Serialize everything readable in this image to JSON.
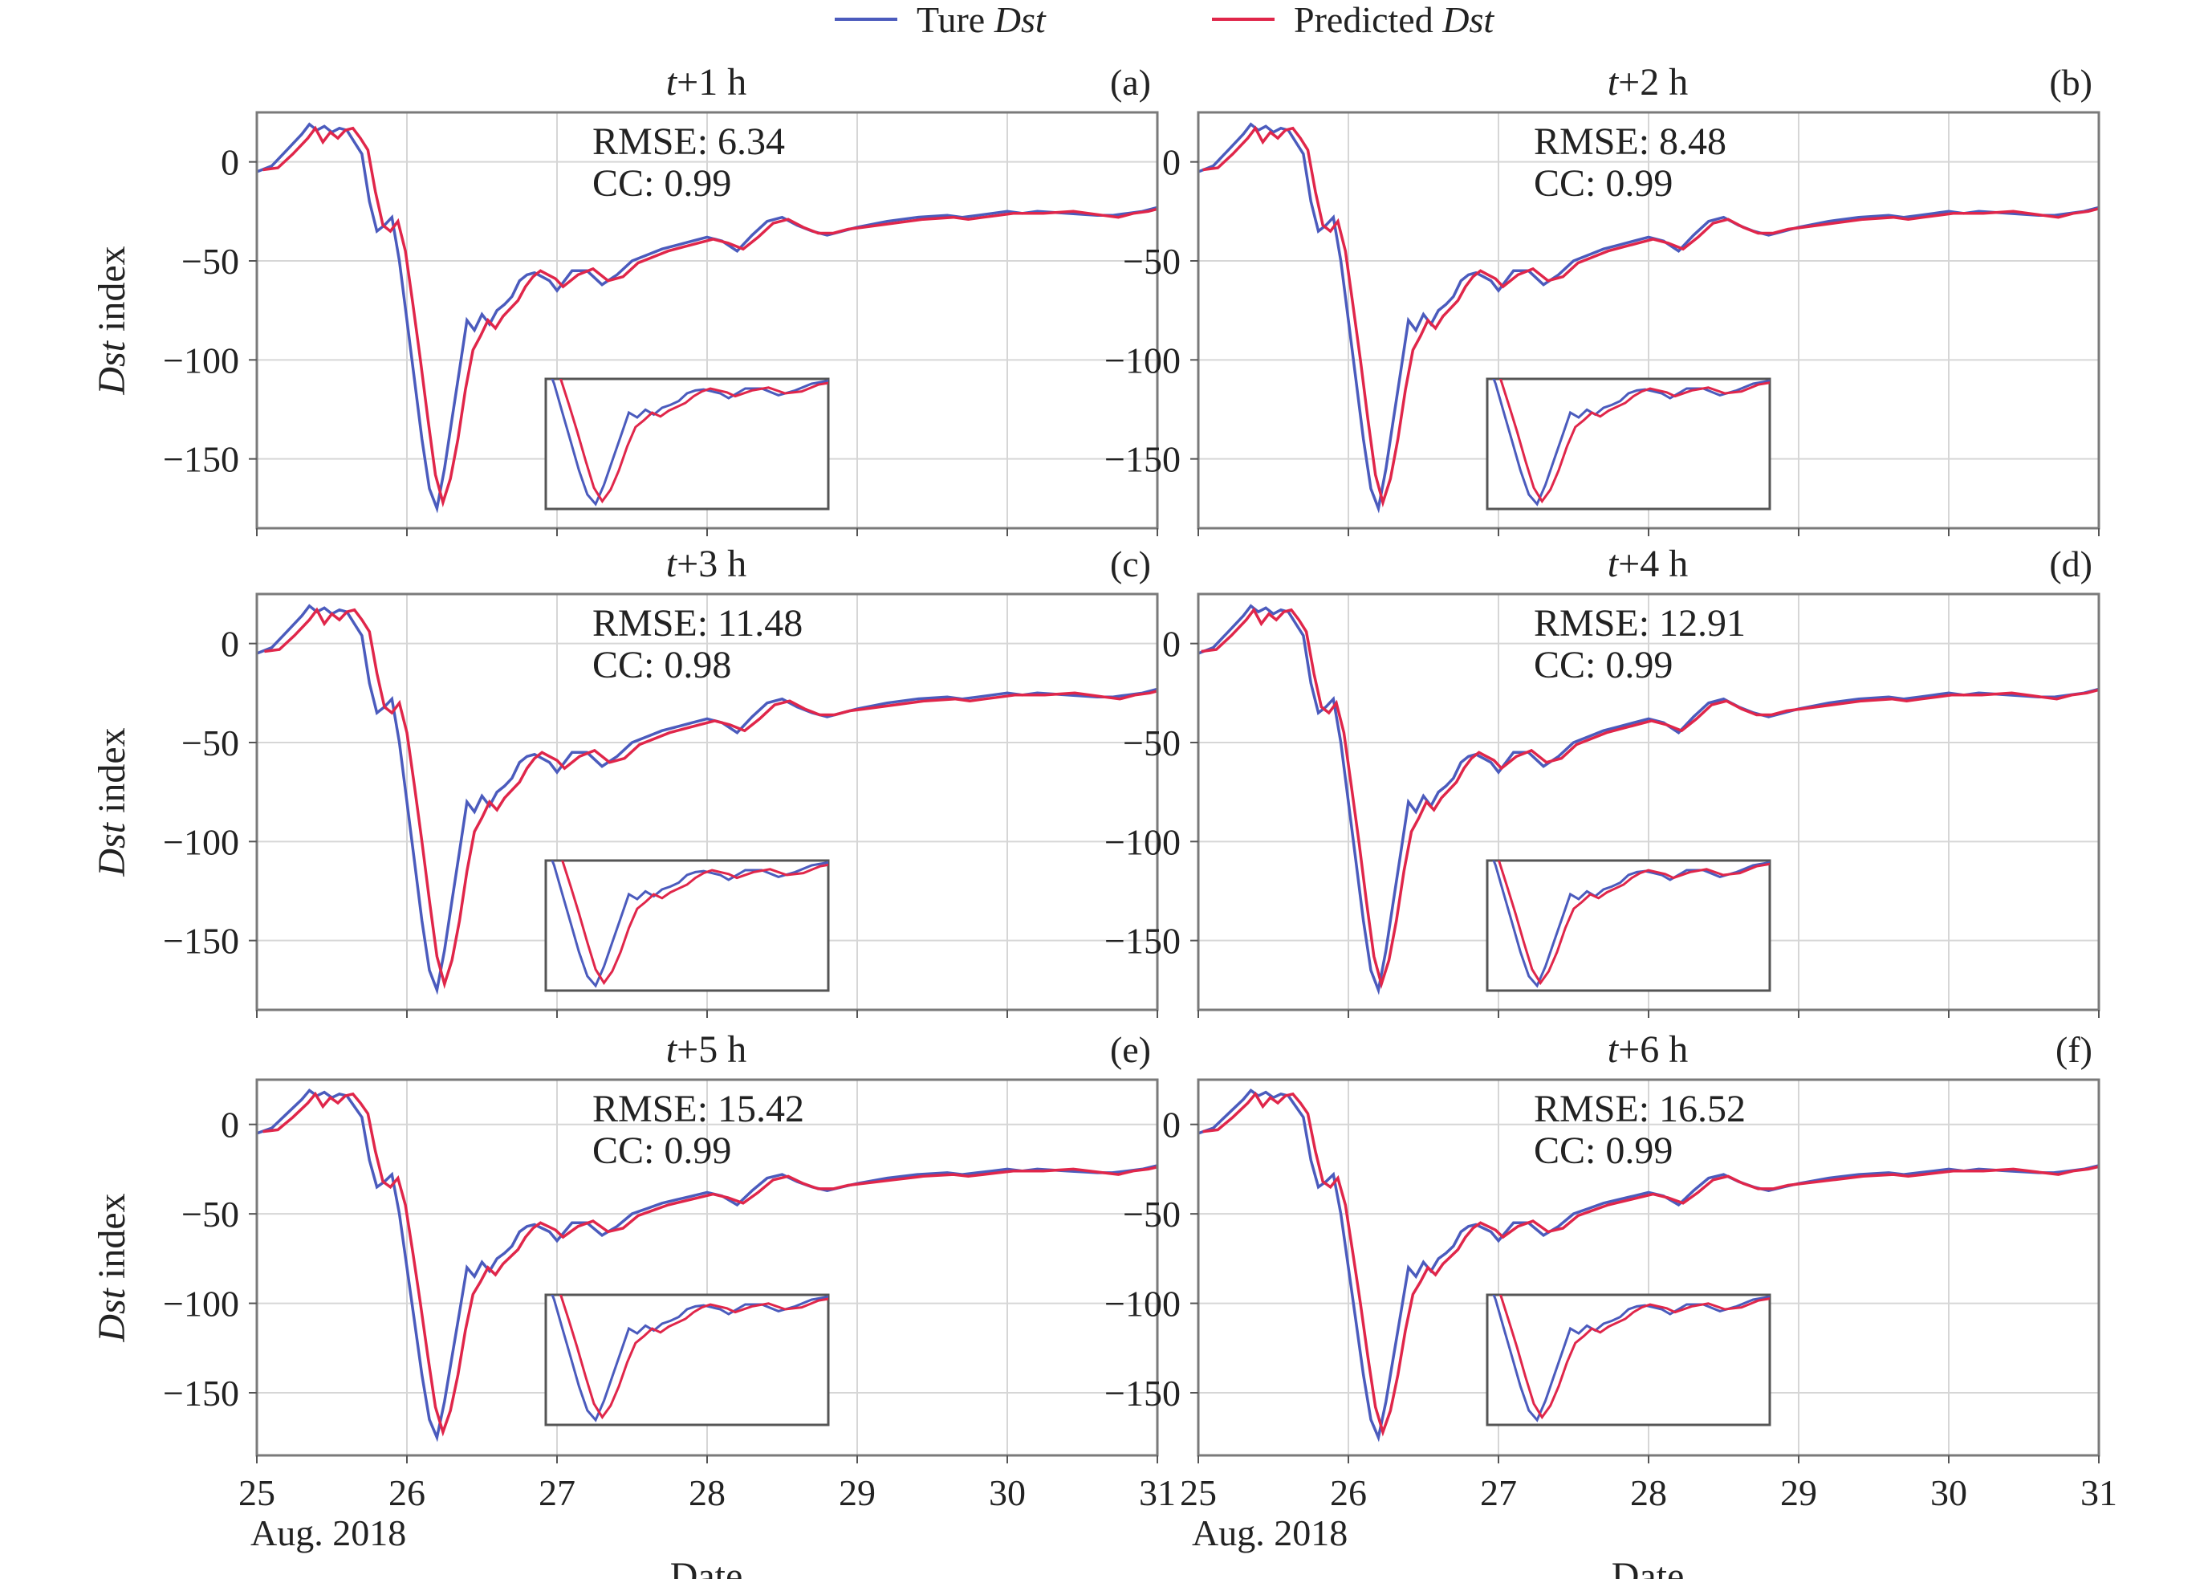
{
  "legend": {
    "items": [
      {
        "label_text": "Ture ",
        "label_italic": "Dst",
        "color": "#4b5bbd"
      },
      {
        "label_text": "Predicted ",
        "label_italic": "Dst",
        "color": "#e0264a"
      }
    ]
  },
  "axis_text": {
    "ylabel_italic": "Dst",
    "ylabel_rest": " index",
    "xlabel": "Date",
    "date_note": "Aug. 2018"
  },
  "chart_data": {
    "type": "line",
    "x_unit": "day of August 2018",
    "xlim": [
      25,
      31
    ],
    "ylim": [
      -185,
      25
    ],
    "x_ticks": [
      25,
      26,
      27,
      28,
      29,
      30,
      31
    ],
    "y_ticks": [
      0,
      -50,
      -100,
      -150
    ],
    "y_tick_labels": [
      "0",
      "−50",
      "−100",
      "−150"
    ],
    "grid": true,
    "legend_position": "top-center",
    "series_colors": {
      "true": "#4b5bbd",
      "predicted": "#e0264a"
    },
    "true_dst": {
      "x": [
        25.0,
        25.1,
        25.2,
        25.3,
        25.35,
        25.4,
        25.45,
        25.5,
        25.55,
        25.6,
        25.65,
        25.7,
        25.75,
        25.8,
        25.85,
        25.9,
        25.95,
        26.0,
        26.05,
        26.1,
        26.15,
        26.2,
        26.25,
        26.3,
        26.35,
        26.4,
        26.45,
        26.5,
        26.55,
        26.6,
        26.65,
        26.7,
        26.75,
        26.8,
        26.85,
        26.9,
        26.95,
        27.0,
        27.1,
        27.2,
        27.3,
        27.4,
        27.5,
        27.6,
        27.7,
        27.8,
        27.9,
        28.0,
        28.1,
        28.2,
        28.3,
        28.4,
        28.5,
        28.6,
        28.7,
        28.8,
        28.9,
        29.0,
        29.2,
        29.4,
        29.6,
        29.7,
        29.8,
        29.9,
        30.0,
        30.1,
        30.2,
        30.4,
        30.6,
        30.7,
        30.8,
        30.9,
        31.0
      ],
      "y": [
        -5,
        -2,
        6,
        14,
        19,
        16,
        18,
        15,
        17,
        16,
        10,
        4,
        -20,
        -35,
        -32,
        -28,
        -50,
        -80,
        -110,
        -140,
        -165,
        -175,
        -155,
        -130,
        -105,
        -80,
        -85,
        -77,
        -82,
        -75,
        -72,
        -68,
        -60,
        -57,
        -56,
        -58,
        -60,
        -65,
        -55,
        -55,
        -62,
        -57,
        -50,
        -47,
        -44,
        -42,
        -40,
        -38,
        -40,
        -45,
        -37,
        -30,
        -28,
        -32,
        -35,
        -37,
        -35,
        -33,
        -30,
        -28,
        -27,
        -28,
        -27,
        -26,
        -25,
        -26,
        -25,
        -26,
        -27,
        -27,
        -26,
        -25,
        -23
      ]
    },
    "predicted_dst": {
      "x": [
        25.0,
        25.1,
        25.2,
        25.3,
        25.35,
        25.4,
        25.45,
        25.5,
        25.55,
        25.6,
        25.65,
        25.7,
        25.75,
        25.8,
        25.85,
        25.9,
        25.95,
        26.0,
        26.05,
        26.1,
        26.15,
        26.2,
        26.25,
        26.3,
        26.35,
        26.4,
        26.45,
        26.5,
        26.55,
        26.6,
        26.65,
        26.7,
        26.75,
        26.8,
        26.85,
        26.9,
        26.95,
        27.0,
        27.1,
        27.2,
        27.3,
        27.4,
        27.5,
        27.6,
        27.7,
        27.8,
        27.9,
        28.0,
        28.1,
        28.2,
        28.3,
        28.4,
        28.5,
        28.6,
        28.7,
        28.8,
        28.9,
        29.0,
        29.2,
        29.4,
        29.6,
        29.7,
        29.8,
        29.9,
        30.0,
        30.1,
        30.2,
        30.4,
        30.6,
        30.7,
        30.8,
        30.9,
        31.0
      ],
      "y": [
        -4,
        -3,
        4,
        12,
        17,
        10,
        15,
        12,
        16,
        17,
        12,
        6,
        -15,
        -32,
        -35,
        -30,
        -45,
        -72,
        -100,
        -130,
        -158,
        -172,
        -160,
        -140,
        -115,
        -95,
        -88,
        -80,
        -84,
        -78,
        -74,
        -70,
        -63,
        -58,
        -55,
        -57,
        -59,
        -63,
        -57,
        -54,
        -60,
        -58,
        -51,
        -48,
        -45,
        -43,
        -41,
        -39,
        -41,
        -44,
        -38,
        -31,
        -29,
        -33,
        -36,
        -36,
        -34,
        -33,
        -31,
        -29,
        -28,
        -29,
        -28,
        -27,
        -26,
        -26,
        -26,
        -25,
        -27,
        -28,
        -26,
        -25,
        -23
      ]
    },
    "panels": [
      {
        "id": "a",
        "title_italic": "t",
        "title_rest": "+1 h",
        "letter": "(a)",
        "rmse_label": "RMSE: 6.34",
        "cc_label": "CC: 0.99",
        "pred_shift_days": 0.04
      },
      {
        "id": "b",
        "title_italic": "t",
        "title_rest": "+2 h",
        "letter": "(b)",
        "rmse_label": "RMSE: 8.48",
        "cc_label": "CC: 0.99",
        "pred_shift_days": 0.03
      },
      {
        "id": "c",
        "title_italic": "t",
        "title_rest": "+3 h",
        "letter": "(c)",
        "rmse_label": "RMSE: 11.48",
        "cc_label": "CC: 0.98",
        "pred_shift_days": 0.05
      },
      {
        "id": "d",
        "title_italic": "t",
        "title_rest": "+4 h",
        "letter": "(d)",
        "rmse_label": "RMSE: 12.91",
        "cc_label": "CC: 0.99",
        "pred_shift_days": 0.02
      },
      {
        "id": "e",
        "title_italic": "t",
        "title_rest": "+5 h",
        "letter": "(e)",
        "rmse_label": "RMSE: 15.42",
        "cc_label": "CC: 0.99",
        "pred_shift_days": 0.04
      },
      {
        "id": "f",
        "title_italic": "t",
        "title_rest": "+6 h",
        "letter": "(f)",
        "rmse_label": "RMSE: 16.52",
        "cc_label": "CC: 0.99",
        "pred_shift_days": 0.03
      }
    ],
    "inset": {
      "description_free": true,
      "xlim": [
        25.9,
        27.6
      ],
      "ylim": [
        -180,
        -45
      ]
    }
  }
}
